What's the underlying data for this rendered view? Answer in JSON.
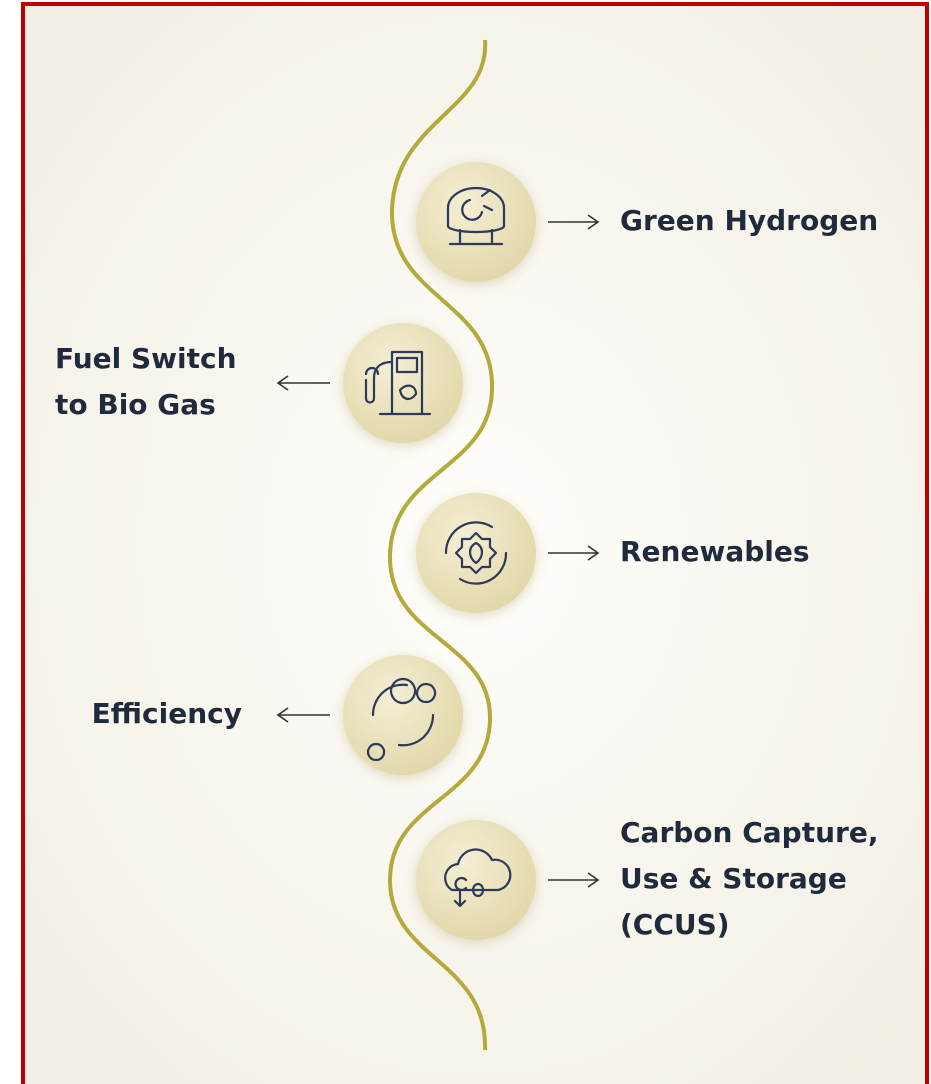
{
  "nodes": [
    {
      "label": [
        "Green Hydrogen"
      ],
      "side": "right"
    },
    {
      "label": [
        "Fuel Switch",
        "to Bio Gas"
      ],
      "side": "left"
    },
    {
      "label": [
        "Renewables"
      ],
      "side": "right"
    },
    {
      "label": [
        "Efficiency"
      ],
      "side": "left"
    },
    {
      "label": [
        "Carbon Capture,",
        "Use & Storage",
        "(CCUS)"
      ],
      "side": "right"
    }
  ]
}
